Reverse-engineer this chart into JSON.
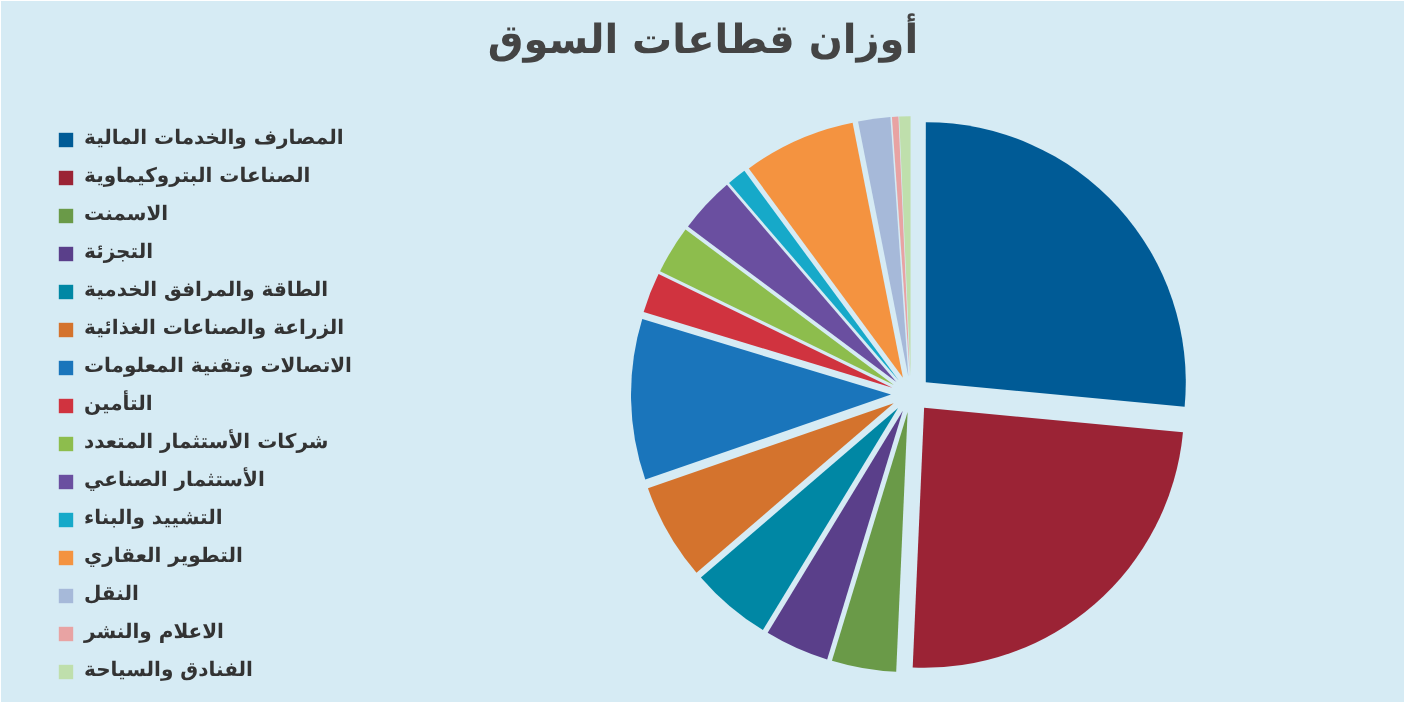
{
  "chart_data": {
    "type": "pie",
    "title": "أوزان قطاعات السوق",
    "categories": [
      "المصارف والخدمات المالية",
      "الصناعات البتروكيماوية",
      "الاسمنت",
      "التجزئة",
      "الطاقة والمرافق الخدمية",
      "الزراعة والصناعات الغذائية",
      "الاتصالات وتقنية المعلومات",
      "التأمين",
      "شركات الأستثمار المتعدد",
      "الأستثمار الصناعي",
      "التشييد والبناء",
      "التطوير العقاري",
      "النقل",
      "الاعلام والنشر",
      "الفنادق والسياحة"
    ],
    "values": [
      26.5,
      24.2,
      4,
      4,
      5,
      6,
      10,
      2.5,
      3,
      3.5,
      1.2,
      7,
      2,
      0.4,
      0.7
    ],
    "colors": [
      "#005b96",
      "#9b2335",
      "#6a9a48",
      "#5a3f8a",
      "#0087a4",
      "#d4732d",
      "#1a75bb",
      "#d0333f",
      "#8dbd4d",
      "#6a4fa0",
      "#16a9c9",
      "#f49340",
      "#a6b9d9",
      "#e8a3a3",
      "#bfdfac"
    ],
    "legend": "left"
  }
}
